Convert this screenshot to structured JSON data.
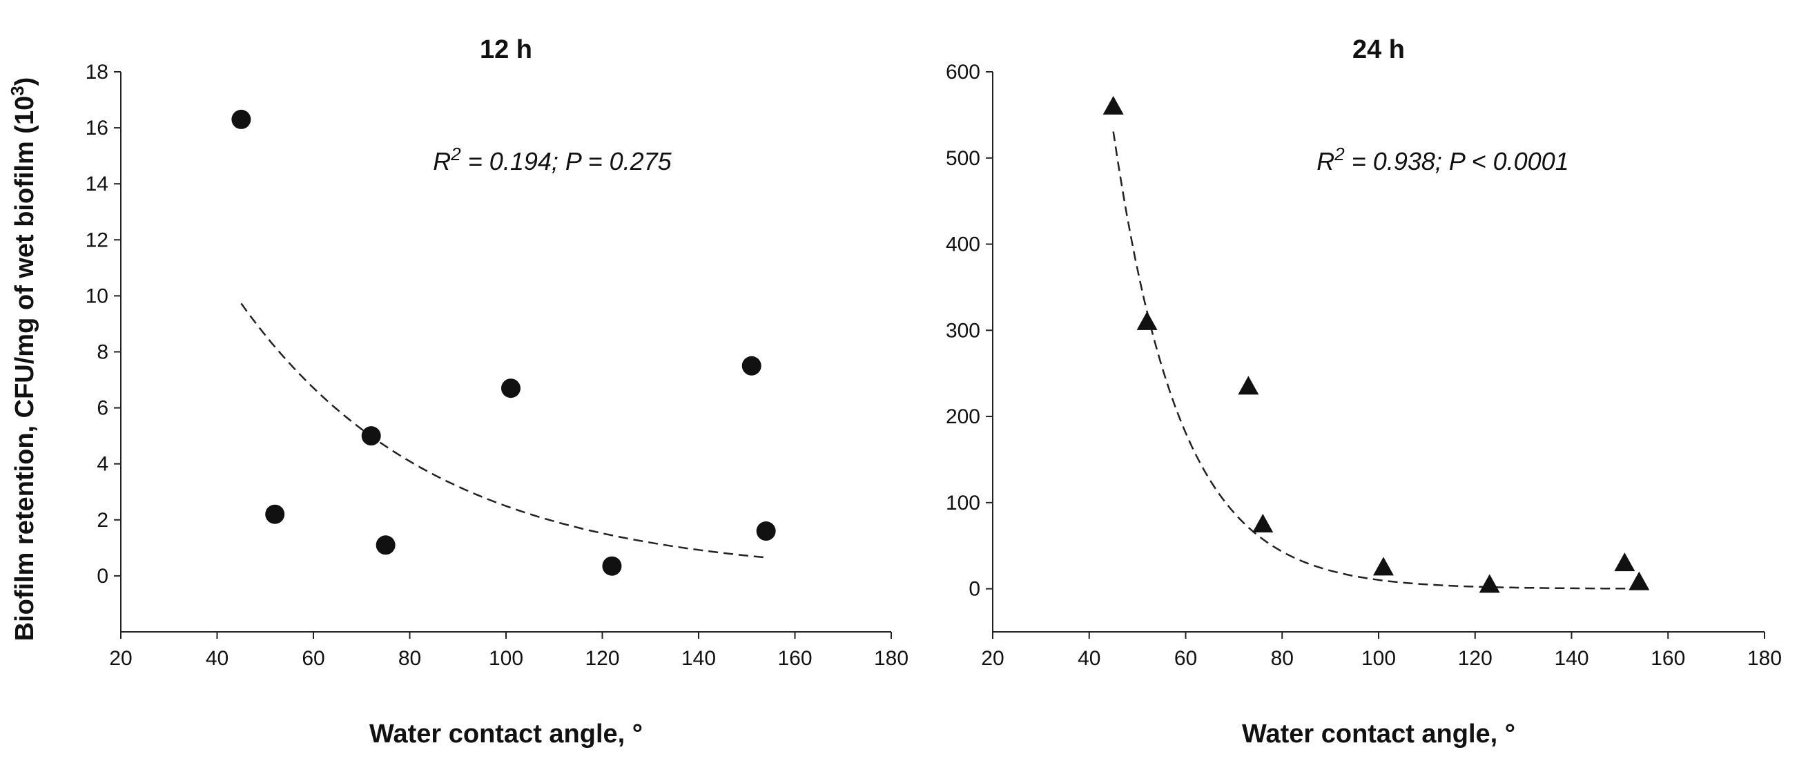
{
  "chart_data": [
    {
      "type": "scatter",
      "title": "12 h",
      "xlabel": "Water contact angle, °",
      "ylabel": "Biofilm retention, CFU/mg of wet biofilm (10",
      "ylabel_sup": "3",
      "ylabel_close": ")",
      "xlim": [
        20,
        180
      ],
      "ylim": [
        -2,
        18
      ],
      "x_ticks": [
        20,
        40,
        60,
        80,
        100,
        120,
        140,
        160,
        180
      ],
      "y_ticks": [
        0,
        2,
        4,
        6,
        8,
        10,
        12,
        14,
        16,
        18
      ],
      "marker": "circle",
      "series": [
        {
          "name": "12 h",
          "x": [
            45,
            52,
            72,
            75,
            101,
            122,
            151,
            154
          ],
          "y": [
            16.3,
            2.2,
            5.0,
            1.1,
            6.7,
            0.35,
            7.5,
            1.6
          ]
        }
      ],
      "trendline": {
        "type": "exponential",
        "x_range": [
          45,
          154
        ],
        "a": 29.63,
        "b": -0.02475
      },
      "annotation": {
        "r_label": "R",
        "r_sup": "2",
        "text": " = 0.194; P = 0.275"
      }
    },
    {
      "type": "scatter",
      "title": "24 h",
      "xlabel": "Water contact angle, °",
      "ylabel": "",
      "xlim": [
        20,
        180
      ],
      "ylim": [
        -50,
        600
      ],
      "x_ticks": [
        20,
        40,
        60,
        80,
        100,
        120,
        140,
        160,
        180
      ],
      "y_ticks": [
        0,
        100,
        200,
        300,
        400,
        500,
        600
      ],
      "marker": "triangle",
      "series": [
        {
          "name": "24 h",
          "x": [
            45,
            52,
            73,
            76,
            101,
            123,
            151,
            154
          ],
          "y": [
            560,
            310,
            235,
            75,
            25,
            5,
            30,
            8
          ]
        }
      ],
      "trendline": {
        "type": "exponential",
        "x_range": [
          45,
          154
        ],
        "a": 13370,
        "b": -0.0717
      },
      "annotation": {
        "r_label": "R",
        "r_sup": "2",
        "text": " = 0.938; P < 0.0001"
      }
    }
  ]
}
